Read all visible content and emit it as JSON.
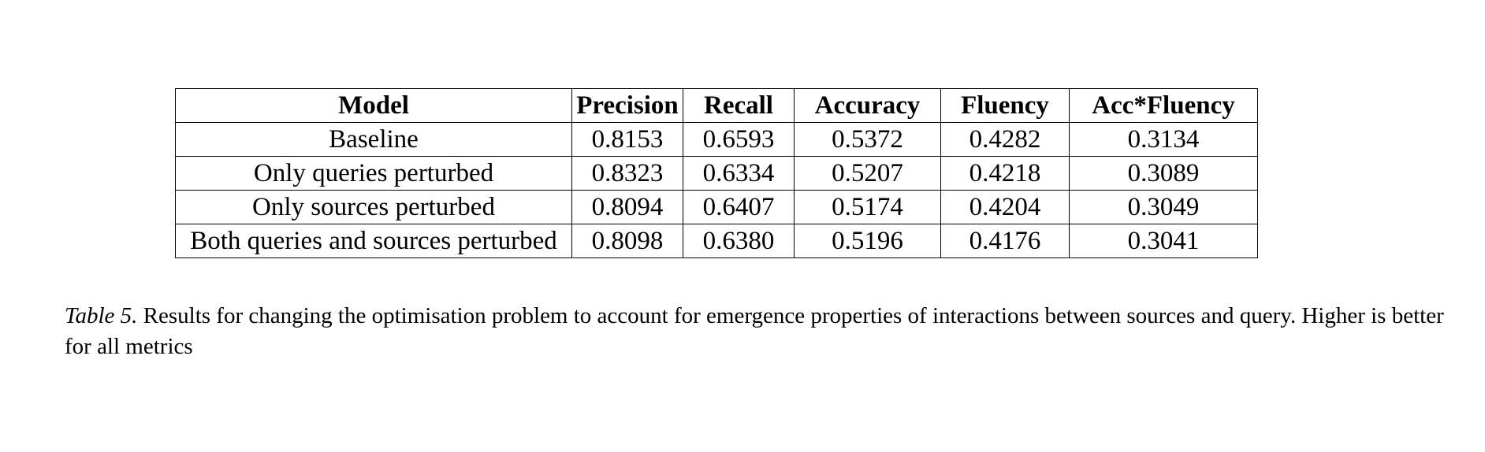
{
  "table": {
    "headers": [
      "Model",
      "Precision",
      "Recall",
      "Accuracy",
      "Fluency",
      "Acc*Fluency"
    ],
    "rows": [
      [
        "Baseline",
        "0.8153",
        "0.6593",
        "0.5372",
        "0.4282",
        "0.3134"
      ],
      [
        "Only queries perturbed",
        "0.8323",
        "0.6334",
        "0.5207",
        "0.4218",
        "0.3089"
      ],
      [
        "Only sources perturbed",
        "0.8094",
        "0.6407",
        "0.5174",
        "0.4204",
        "0.3049"
      ],
      [
        "Both queries and sources perturbed",
        "0.8098",
        "0.6380",
        "0.5196",
        "0.4176",
        "0.3041"
      ]
    ]
  },
  "caption": {
    "label": "Table 5.",
    "text": " Results for changing the optimisation problem to account for emergence properties of interactions between sources and query. Higher is better for all metrics"
  }
}
